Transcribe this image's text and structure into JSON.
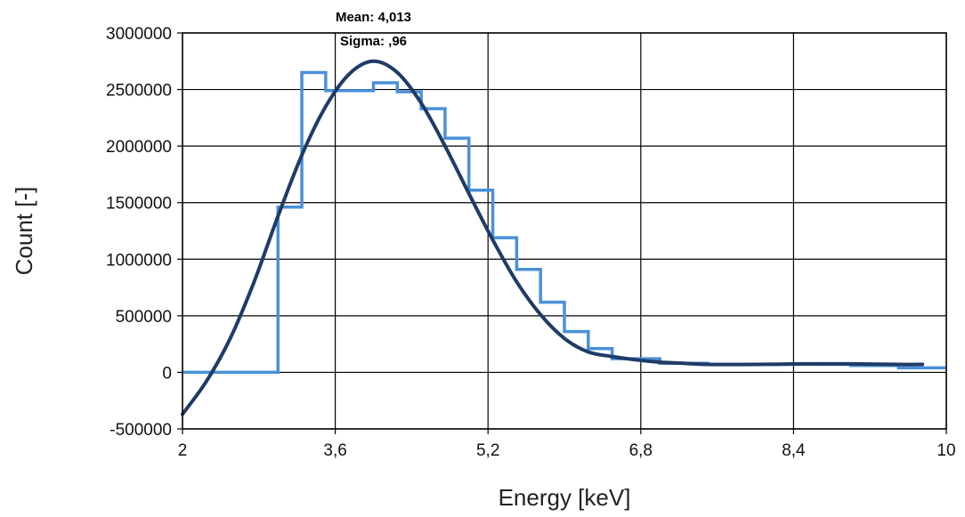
{
  "chart_data": {
    "type": "line",
    "title": "",
    "xlabel": "Energy [keV]",
    "ylabel": "Count [-]",
    "xlim": [
      2,
      10
    ],
    "ylim": [
      -500000,
      3000000
    ],
    "x_ticks": [
      2,
      3.6,
      5.2,
      6.8,
      8.4,
      10
    ],
    "x_tick_labels": [
      "2",
      "3,6",
      "5,2",
      "6,8",
      "8,4",
      "10"
    ],
    "y_ticks": [
      -500000,
      0,
      500000,
      1000000,
      1500000,
      2000000,
      2500000,
      3000000
    ],
    "y_tick_labels": [
      "-500000",
      "0",
      "500000",
      "1000000",
      "1500000",
      "2000000",
      "2500000",
      "3000000"
    ],
    "grid": true,
    "legend": "none",
    "annotations": {
      "mean": "Mean: 4,013",
      "sigma": "Sigma: ,96"
    },
    "series": [
      {
        "style": "step",
        "color": "#4a90d9",
        "x": [
          2.0,
          3.0,
          3.25,
          3.5,
          4.0,
          4.25,
          4.5,
          4.75,
          5.0,
          5.25,
          5.5,
          5.75,
          6.0,
          6.25,
          6.5,
          7.0,
          7.5,
          8.0,
          9.0,
          9.5,
          10.0
        ],
        "values": [
          0,
          1460000,
          2650000,
          2490000,
          2560000,
          2480000,
          2330000,
          2070000,
          1610000,
          1190000,
          910000,
          620000,
          360000,
          210000,
          120000,
          80000,
          70000,
          70000,
          60000,
          40000,
          40000
        ]
      },
      {
        "style": "smooth",
        "color": "#1f3b66",
        "x": [
          2.0,
          2.25,
          2.5,
          2.75,
          3.0,
          3.25,
          3.5,
          3.75,
          4.0,
          4.25,
          4.5,
          4.75,
          5.0,
          5.25,
          5.5,
          5.75,
          6.0,
          6.25,
          6.5,
          6.75,
          7.0,
          7.25,
          7.5,
          8.0,
          8.5,
          9.0,
          9.5,
          9.75
        ],
        "values": [
          -370000,
          -80000,
          300000,
          800000,
          1380000,
          1920000,
          2350000,
          2640000,
          2750000,
          2650000,
          2380000,
          2000000,
          1580000,
          1170000,
          800000,
          510000,
          300000,
          180000,
          140000,
          110000,
          90000,
          80000,
          70000,
          70000,
          75000,
          75000,
          70000,
          70000
        ]
      }
    ]
  }
}
